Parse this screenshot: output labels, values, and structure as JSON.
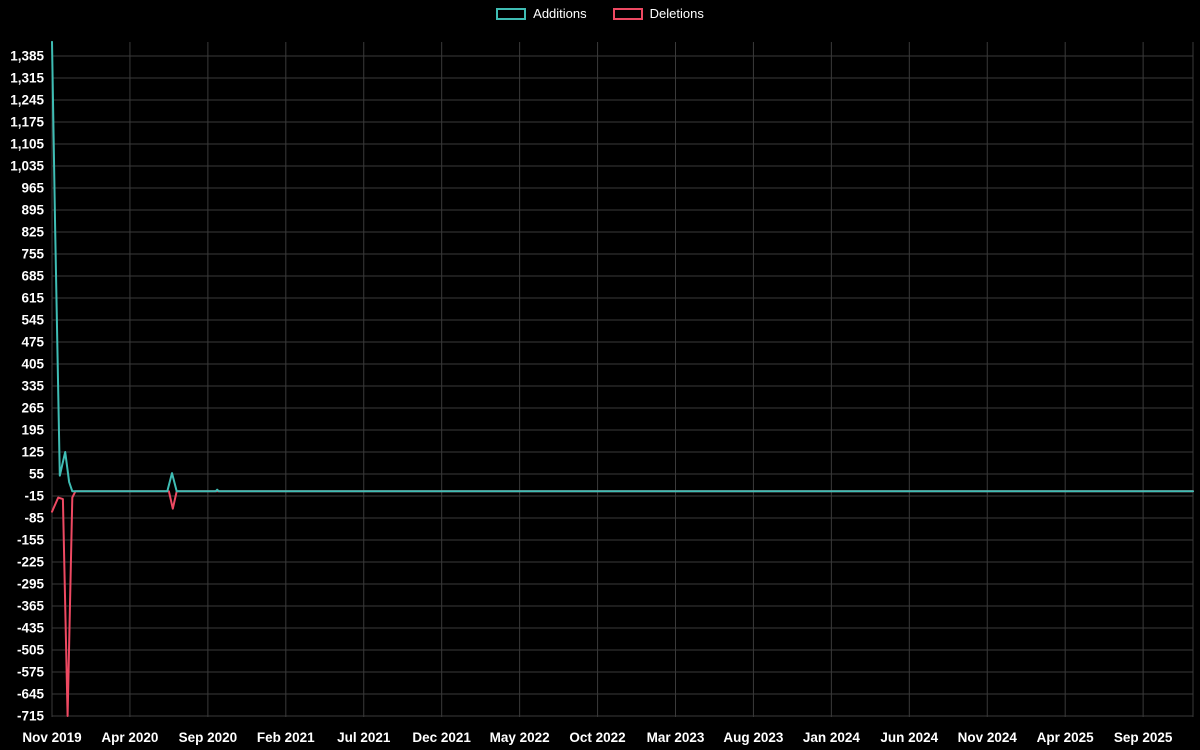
{
  "chart_data": {
    "type": "line",
    "title": "",
    "xlabel": "",
    "ylabel": "",
    "background": "#000000",
    "grid": true,
    "grid_color": "#3a3a3a",
    "text_color": "#ffffff",
    "legend_position": "top-center",
    "xlim": [
      0,
      73.2
    ],
    "ylim": [
      -715,
      1430
    ],
    "x_tick_labels": [
      "Nov 2019",
      "Apr 2020",
      "Sep 2020",
      "Feb 2021",
      "Jul 2021",
      "Dec 2021",
      "May 2022",
      "Oct 2022",
      "Mar 2023",
      "Aug 2023",
      "Jan 2024",
      "Jun 2024",
      "Nov 2024",
      "Apr 2025",
      "Sep 2025"
    ],
    "x_tick_months": [
      0,
      5,
      10,
      15,
      20,
      25,
      30,
      35,
      40,
      45,
      50,
      55,
      60,
      65,
      70
    ],
    "y_tick_values": [
      1385,
      1315,
      1245,
      1175,
      1105,
      1035,
      965,
      895,
      825,
      755,
      685,
      615,
      545,
      475,
      405,
      335,
      265,
      195,
      125,
      55,
      -15,
      -85,
      -155,
      -225,
      -295,
      -365,
      -435,
      -505,
      -575,
      -645,
      -715
    ],
    "y_tick_labels": [
      "1,385",
      "1,315",
      "1,245",
      "1,175",
      "1,105",
      "1,035",
      "965",
      "895",
      "825",
      "755",
      "685",
      "615",
      "545",
      "475",
      "405",
      "335",
      "265",
      "195",
      "125",
      "55",
      "-15",
      "-85",
      "-155",
      "-225",
      "-295",
      "-365",
      "-435",
      "-505",
      "-575",
      "-645",
      "-715"
    ],
    "series": [
      {
        "name": "Additions",
        "color": "#3fbdb4",
        "points": [
          [
            0,
            1430
          ],
          [
            0.2,
            845
          ],
          [
            0.5,
            50
          ],
          [
            0.85,
            125
          ],
          [
            1.1,
            30
          ],
          [
            1.3,
            0
          ],
          [
            7.4,
            0
          ],
          [
            7.7,
            58
          ],
          [
            8.0,
            0
          ],
          [
            10.5,
            0
          ],
          [
            10.6,
            5
          ],
          [
            10.7,
            0
          ],
          [
            73.2,
            0
          ]
        ]
      },
      {
        "name": "Deletions",
        "color": "#ee4962",
        "points": [
          [
            0,
            -65
          ],
          [
            0.4,
            -20
          ],
          [
            0.7,
            -25
          ],
          [
            1.0,
            -715
          ],
          [
            1.3,
            -20
          ],
          [
            1.5,
            0
          ],
          [
            7.5,
            0
          ],
          [
            7.75,
            -55
          ],
          [
            8.0,
            0
          ],
          [
            73.2,
            0
          ]
        ]
      }
    ]
  }
}
